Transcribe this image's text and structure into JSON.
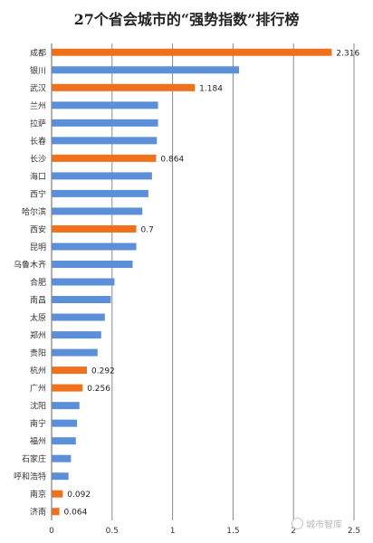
{
  "chart_data": {
    "type": "bar",
    "orientation": "horizontal",
    "title": "27个省会城市的“强势指数”排行榜",
    "categories": [
      "成都",
      "银川",
      "武汉",
      "兰州",
      "拉萨",
      "长春",
      "长沙",
      "海口",
      "西宁",
      "哈尔滨",
      "西安",
      "昆明",
      "乌鲁木齐",
      "合肥",
      "南昌",
      "太原",
      "郑州",
      "贵阳",
      "杭州",
      "广州",
      "沈阳",
      "南宁",
      "福州",
      "石家庄",
      "呼和浩特",
      "南京",
      "济南"
    ],
    "values": [
      2.316,
      1.55,
      1.184,
      0.88,
      0.88,
      0.87,
      0.864,
      0.83,
      0.8,
      0.75,
      0.7,
      0.7,
      0.67,
      0.52,
      0.49,
      0.44,
      0.41,
      0.38,
      0.292,
      0.256,
      0.23,
      0.21,
      0.2,
      0.16,
      0.14,
      0.092,
      0.064
    ],
    "data_labels": [
      "2.316",
      "",
      "1.184",
      "",
      "",
      "",
      "0.864",
      "",
      "",
      "",
      "0.7",
      "",
      "",
      "",
      "",
      "",
      "",
      "",
      "0.292",
      "0.256",
      "",
      "",
      "",
      "",
      "",
      "0.092",
      "0.064"
    ],
    "highlighted": [
      true,
      false,
      true,
      false,
      false,
      false,
      true,
      false,
      false,
      false,
      true,
      false,
      false,
      false,
      false,
      false,
      false,
      false,
      true,
      true,
      false,
      false,
      false,
      false,
      false,
      true,
      true
    ],
    "x_ticks": [
      "0",
      "0.5",
      "1",
      "1.5",
      "2",
      "2.5"
    ],
    "xlim": [
      0,
      2.5
    ],
    "grid": true,
    "colors": {
      "highlight": "#f0701b",
      "default": "#5b8fd8",
      "grid": "#8a8a8a"
    }
  },
  "watermark": {
    "text": "城市智库",
    "icon": "wechat-icon"
  }
}
